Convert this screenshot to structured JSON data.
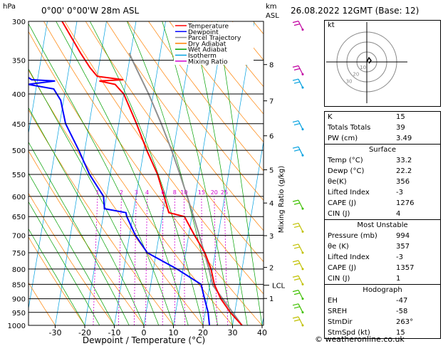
{
  "header": {
    "location": "0°00' 0°00'W 28m ASL",
    "hpa_label": "hPa",
    "km_label": "km",
    "asl_label": "ASL",
    "datetime": "26.08.2022 12GMT (Base: 12)"
  },
  "chart_data": {
    "type": "skew-t",
    "xlabel": "Dewpoint / Temperature (°C)",
    "ylabel_right": "Mixing Ratio (g/kg)",
    "pressure_ticks": [
      300,
      350,
      400,
      450,
      500,
      550,
      600,
      650,
      700,
      750,
      800,
      850,
      900,
      950,
      1000
    ],
    "temp_ticks": [
      -30,
      -20,
      -10,
      0,
      10,
      20,
      30,
      40
    ],
    "km_ticks": [
      {
        "km": "8",
        "p": 356
      },
      {
        "km": "7",
        "p": 411
      },
      {
        "km": "6",
        "p": 472
      },
      {
        "km": "5",
        "p": 540
      },
      {
        "km": "4",
        "p": 616
      },
      {
        "km": "3",
        "p": 701
      },
      {
        "km": "2",
        "p": 795
      },
      {
        "km": "1",
        "p": 899
      }
    ],
    "mixing_ratio_labels": [
      "1",
      "2",
      "3",
      "4",
      "6",
      "8",
      "10",
      "15",
      "20",
      "25"
    ],
    "mixing_ratio_values": [
      1,
      2,
      3,
      4,
      6,
      8,
      10,
      15,
      20,
      25
    ],
    "lcl_label": "LCL",
    "lcl_pressure": 853,
    "legend": [
      "Temperature",
      "Dewpoint",
      "Parcel Trajectory",
      "Dry Adiabat",
      "Wet Adiabat",
      "Isotherm",
      "Mixing Ratio"
    ],
    "legend_colors": [
      "#ff0000",
      "#0000ff",
      "#909090",
      "#ff8000",
      "#00a000",
      "#00a0e0",
      "#d000d0"
    ],
    "temperature": [
      [
        1000,
        33.2
      ],
      [
        950,
        28.5
      ],
      [
        900,
        24.5
      ],
      [
        850,
        21.5
      ],
      [
        800,
        19.5
      ],
      [
        750,
        16.5
      ],
      [
        700,
        12.0
      ],
      [
        650,
        7.5
      ],
      [
        640,
        2.0
      ],
      [
        600,
        -0.5
      ],
      [
        550,
        -4.0
      ],
      [
        500,
        -9.0
      ],
      [
        450,
        -14.0
      ],
      [
        400,
        -20.0
      ],
      [
        385,
        -23.5
      ],
      [
        380,
        -29.0
      ],
      [
        378,
        -21.0
      ],
      [
        373,
        -30.0
      ],
      [
        360,
        -33.0
      ],
      [
        340,
        -37.0
      ],
      [
        300,
        -45.0
      ]
    ],
    "dewpoint": [
      [
        1000,
        22.2
      ],
      [
        950,
        21.0
      ],
      [
        900,
        19.0
      ],
      [
        850,
        17.0
      ],
      [
        800,
        8.0
      ],
      [
        750,
        -3.0
      ],
      [
        700,
        -8.0
      ],
      [
        650,
        -12.0
      ],
      [
        640,
        -12.5
      ],
      [
        630,
        -20.0
      ],
      [
        600,
        -21.0
      ],
      [
        550,
        -27.0
      ],
      [
        500,
        -32.0
      ],
      [
        450,
        -38.0
      ],
      [
        410,
        -41.0
      ],
      [
        392,
        -44.0
      ],
      [
        385,
        -53.0
      ],
      [
        380,
        -44.0
      ],
      [
        378,
        -52.0
      ],
      [
        370,
        -55.0
      ],
      [
        340,
        -60.0
      ],
      [
        300,
        -68.0
      ]
    ],
    "parcel": [
      [
        1000,
        33.2
      ],
      [
        853,
        21.0
      ],
      [
        800,
        18.8
      ],
      [
        750,
        16.3
      ],
      [
        700,
        13.6
      ],
      [
        650,
        10.6
      ],
      [
        600,
        7.3
      ],
      [
        550,
        3.6
      ],
      [
        500,
        -0.6
      ],
      [
        450,
        -5.6
      ],
      [
        400,
        -11.6
      ],
      [
        350,
        -19.0
      ],
      [
        340,
        -20.5
      ]
    ],
    "wind_barbs": [
      {
        "p": 310,
        "color": "#c000a0"
      },
      {
        "p": 370,
        "color": "#c000a0"
      },
      {
        "p": 390,
        "color": "#00a0e0"
      },
      {
        "p": 460,
        "color": "#00a0e0"
      },
      {
        "p": 510,
        "color": "#00a0e0"
      },
      {
        "p": 630,
        "color": "#40c000"
      },
      {
        "p": 690,
        "color": "#c0c000"
      },
      {
        "p": 750,
        "color": "#c0c000"
      },
      {
        "p": 800,
        "color": "#c0c000"
      },
      {
        "p": 850,
        "color": "#c0c000"
      },
      {
        "p": 900,
        "color": "#40c000"
      },
      {
        "p": 950,
        "color": "#40c000"
      },
      {
        "p": 1000,
        "color": "#c0c000"
      }
    ]
  },
  "hodograph": {
    "label": "kt",
    "ring_labels": [
      "10",
      "20",
      "30"
    ]
  },
  "indices": {
    "rows": [
      {
        "label": "K",
        "value": "15"
      },
      {
        "label": "Totals Totals",
        "value": "39"
      },
      {
        "label": "PW (cm)",
        "value": "3.49"
      }
    ]
  },
  "surface": {
    "title": "Surface",
    "rows": [
      {
        "label": "Temp (°C)",
        "value": "33.2"
      },
      {
        "label": "Dewp (°C)",
        "value": "22.2"
      },
      {
        "label": "θe(K)",
        "value": "356"
      },
      {
        "label": "Lifted Index",
        "value": "-3"
      },
      {
        "label": "CAPE (J)",
        "value": "1276"
      },
      {
        "label": "CIN (J)",
        "value": "4"
      }
    ]
  },
  "most_unstable": {
    "title": "Most Unstable",
    "rows": [
      {
        "label": "Pressure (mb)",
        "value": "994"
      },
      {
        "label": "θe (K)",
        "value": "357"
      },
      {
        "label": "Lifted Index",
        "value": "-3"
      },
      {
        "label": "CAPE (J)",
        "value": "1357"
      },
      {
        "label": "CIN (J)",
        "value": "1"
      }
    ]
  },
  "hodograph_table": {
    "title": "Hodograph",
    "rows": [
      {
        "label": "EH",
        "value": "-47"
      },
      {
        "label": "SREH",
        "value": "-58"
      },
      {
        "label": "StmDir",
        "value": "263°"
      },
      {
        "label": "StmSpd (kt)",
        "value": "15"
      }
    ]
  },
  "footer": {
    "credit": "© weatheronline.co.uk"
  }
}
